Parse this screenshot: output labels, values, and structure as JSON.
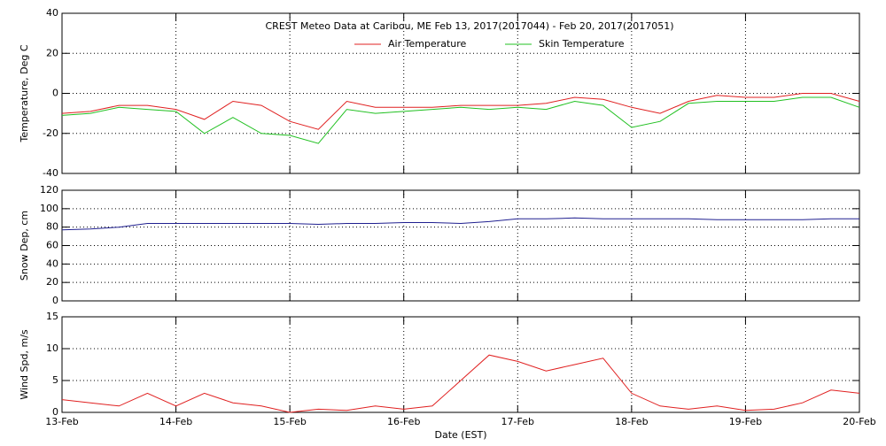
{
  "chart_data": [
    {
      "type": "line",
      "title": "CREST Meteo Data at Caribou, ME   Feb 13, 2017(2017044) - Feb 20, 2017(2017051)",
      "y_label": "Temperature, Deg C",
      "xlim": [
        0,
        7
      ],
      "xticks": [
        0,
        1,
        2,
        3,
        4,
        5,
        6,
        7
      ],
      "ylim": [
        -40,
        40
      ],
      "yticks": [
        -40,
        -20,
        0,
        20,
        40
      ],
      "grid": true,
      "legend": "top",
      "x": [
        0,
        0.25,
        0.5,
        0.75,
        1,
        1.25,
        1.5,
        1.75,
        2,
        2.25,
        2.5,
        2.75,
        3,
        3.25,
        3.5,
        3.75,
        4,
        4.25,
        4.5,
        4.75,
        5,
        5.25,
        5.5,
        5.75,
        6,
        6.25,
        6.5,
        6.75,
        7
      ],
      "series": [
        {
          "name": "Air Temperature",
          "color": "#e02020",
          "values": [
            -10,
            -9,
            -6,
            -6,
            -8,
            -13,
            -4,
            -6,
            -14,
            -18,
            -4,
            -7,
            -7,
            -7,
            -6,
            -6,
            -6,
            -5,
            -2,
            -3,
            -7,
            -10,
            -4,
            -1,
            -2,
            -2,
            0,
            0,
            -4
          ]
        },
        {
          "name": "Skin Temperature",
          "color": "#20c020",
          "values": [
            -11,
            -10,
            -7,
            -8,
            -9,
            -20,
            -12,
            -20,
            -21,
            -25,
            -8,
            -10,
            -9,
            -8,
            -7,
            -8,
            -7,
            -8,
            -4,
            -6,
            -17,
            -14,
            -5,
            -4,
            -4,
            -4,
            -2,
            -2,
            -7
          ]
        }
      ]
    },
    {
      "type": "line",
      "y_label": "Snow Dep, cm",
      "xlim": [
        0,
        7
      ],
      "xticks": [
        0,
        1,
        2,
        3,
        4,
        5,
        6,
        7
      ],
      "ylim": [
        0,
        120
      ],
      "yticks": [
        0,
        20,
        40,
        60,
        80,
        100,
        120
      ],
      "grid": true,
      "x": [
        0,
        0.25,
        0.5,
        0.75,
        1,
        1.25,
        1.5,
        1.75,
        2,
        2.25,
        2.5,
        2.75,
        3,
        3.25,
        3.5,
        3.75,
        4,
        4.25,
        4.5,
        4.75,
        5,
        5.25,
        5.5,
        5.75,
        6,
        6.25,
        6.5,
        6.75,
        7
      ],
      "series": [
        {
          "color": "#202090",
          "values": [
            77,
            78,
            80,
            84,
            84,
            84,
            84,
            84,
            84,
            83,
            84,
            84,
            85,
            85,
            84,
            86,
            89,
            89,
            90,
            89,
            89,
            89,
            89,
            88,
            88,
            88,
            88,
            89,
            89
          ]
        }
      ]
    },
    {
      "type": "line",
      "y_label": "Wind Spd, m/s",
      "x_label": "Date (EST)",
      "xlim": [
        0,
        7
      ],
      "xticks": [
        {
          "value": 0,
          "label": "13-Feb"
        },
        {
          "value": 1,
          "label": "14-Feb"
        },
        {
          "value": 2,
          "label": "15-Feb"
        },
        {
          "value": 3,
          "label": "16-Feb"
        },
        {
          "value": 4,
          "label": "17-Feb"
        },
        {
          "value": 5,
          "label": "18-Feb"
        },
        {
          "value": 6,
          "label": "19-Feb"
        },
        {
          "value": 7,
          "label": "20-Feb"
        }
      ],
      "ylim": [
        0,
        15
      ],
      "yticks": [
        0,
        5,
        10,
        15
      ],
      "grid": true,
      "x": [
        0,
        0.25,
        0.5,
        0.75,
        1,
        1.25,
        1.5,
        1.75,
        2,
        2.25,
        2.5,
        2.75,
        3,
        3.25,
        3.5,
        3.75,
        4,
        4.25,
        4.5,
        4.75,
        5,
        5.25,
        5.5,
        5.75,
        6,
        6.25,
        6.5,
        6.75,
        7
      ],
      "series": [
        {
          "color": "#e02020",
          "values": [
            2,
            1.5,
            1,
            3,
            1,
            3,
            1.5,
            1,
            0,
            0.5,
            0.3,
            1,
            0.5,
            1,
            5,
            9,
            8,
            6.5,
            7.5,
            8.5,
            3,
            1,
            0.5,
            1,
            0.3,
            0.5,
            1.5,
            3.5,
            3
          ]
        }
      ]
    }
  ]
}
